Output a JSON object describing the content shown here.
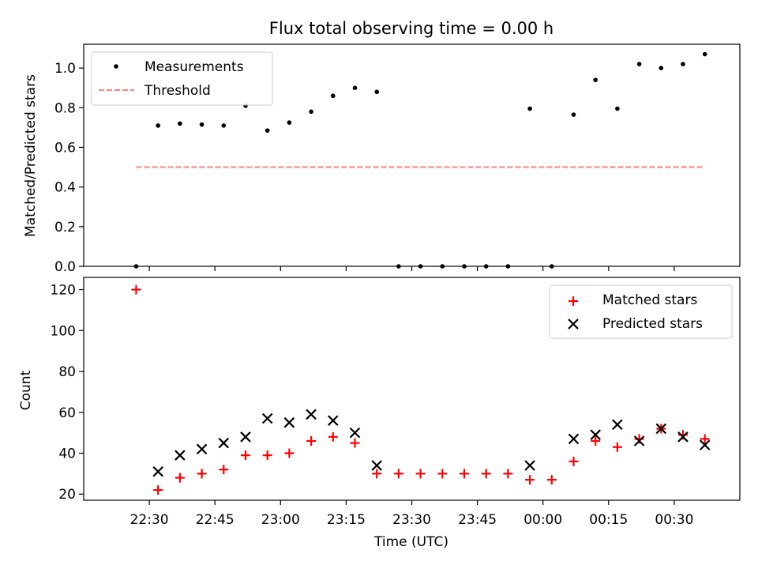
{
  "figure": {
    "title": "Flux total observing time = 0.00 h",
    "xlabel": "Time (UTC)"
  },
  "chart_data": [
    {
      "type": "scatter",
      "panel": "top",
      "ylabel": "Matched/Predicted stars",
      "ylim": [
        0,
        1.12
      ],
      "yticks": [
        "0.0",
        "0.2",
        "0.4",
        "0.6",
        "0.8",
        "1.0"
      ],
      "x_unit": "minutes after 22:30 UTC shown as clock times",
      "xlim": [
        "22:15",
        "00:45"
      ],
      "legend_position": "upper left",
      "series": [
        {
          "name": "Measurements",
          "marker": "dot",
          "color": "#000000",
          "points": [
            [
              "22:27",
              0.0
            ],
            [
              "22:32",
              0.71
            ],
            [
              "22:37",
              0.72
            ],
            [
              "22:42",
              0.715
            ],
            [
              "22:47",
              0.71
            ],
            [
              "22:52",
              0.81
            ],
            [
              "22:57",
              0.685
            ],
            [
              "23:02",
              0.725
            ],
            [
              "23:07",
              0.78
            ],
            [
              "23:12",
              0.86
            ],
            [
              "23:17",
              0.9
            ],
            [
              "23:22",
              0.88
            ],
            [
              "23:27",
              0.0
            ],
            [
              "23:32",
              0.0
            ],
            [
              "23:37",
              0.0
            ],
            [
              "23:42",
              0.0
            ],
            [
              "23:47",
              0.0
            ],
            [
              "23:52",
              0.0
            ],
            [
              "23:57",
              0.795
            ],
            [
              "00:02",
              0.0
            ],
            [
              "00:07",
              0.765
            ],
            [
              "00:12",
              0.94
            ],
            [
              "00:17",
              0.795
            ],
            [
              "00:22",
              1.02
            ],
            [
              "00:27",
              1.0
            ],
            [
              "00:32",
              1.02
            ],
            [
              "00:37",
              1.07
            ]
          ]
        },
        {
          "name": "Threshold",
          "marker": "dashed-line",
          "color": "#ff7f7f",
          "points": [
            [
              "22:27",
              0.5
            ],
            [
              "00:37",
              0.5
            ]
          ]
        }
      ]
    },
    {
      "type": "scatter",
      "panel": "bottom",
      "ylabel": "Count",
      "ylim": [
        17,
        126
      ],
      "yticks": [
        "20",
        "40",
        "60",
        "80",
        "100",
        "120"
      ],
      "xticks": [
        "22:30",
        "22:45",
        "23:00",
        "23:15",
        "23:30",
        "23:45",
        "00:00",
        "00:15",
        "00:30"
      ],
      "legend_position": "upper right",
      "series": [
        {
          "name": "Matched stars",
          "marker": "plus",
          "color": "#ff0000",
          "points": [
            [
              "22:27",
              120
            ],
            [
              "22:32",
              22
            ],
            [
              "22:37",
              28
            ],
            [
              "22:42",
              30
            ],
            [
              "22:47",
              32
            ],
            [
              "22:52",
              39
            ],
            [
              "22:57",
              39
            ],
            [
              "23:02",
              40
            ],
            [
              "23:07",
              46
            ],
            [
              "23:12",
              48
            ],
            [
              "23:17",
              45
            ],
            [
              "23:22",
              30
            ],
            [
              "23:27",
              30
            ],
            [
              "23:32",
              30
            ],
            [
              "23:37",
              30
            ],
            [
              "23:42",
              30
            ],
            [
              "23:47",
              30
            ],
            [
              "23:52",
              30
            ],
            [
              "23:57",
              27
            ],
            [
              "00:02",
              27
            ],
            [
              "00:07",
              36
            ],
            [
              "00:12",
              46
            ],
            [
              "00:17",
              43
            ],
            [
              "00:22",
              47
            ],
            [
              "00:27",
              52
            ],
            [
              "00:32",
              49
            ],
            [
              "00:37",
              47
            ]
          ]
        },
        {
          "name": "Predicted stars",
          "marker": "x",
          "color": "#000000",
          "points": [
            [
              "22:32",
              31
            ],
            [
              "22:37",
              39
            ],
            [
              "22:42",
              42
            ],
            [
              "22:47",
              45
            ],
            [
              "22:52",
              48
            ],
            [
              "22:57",
              57
            ],
            [
              "23:02",
              55
            ],
            [
              "23:07",
              59
            ],
            [
              "23:12",
              56
            ],
            [
              "23:17",
              50
            ],
            [
              "23:22",
              34
            ],
            [
              "23:57",
              34
            ],
            [
              "00:07",
              47
            ],
            [
              "00:12",
              49
            ],
            [
              "00:17",
              54
            ],
            [
              "00:22",
              46
            ],
            [
              "00:27",
              52
            ],
            [
              "00:32",
              48
            ],
            [
              "00:37",
              44
            ]
          ]
        }
      ]
    }
  ]
}
